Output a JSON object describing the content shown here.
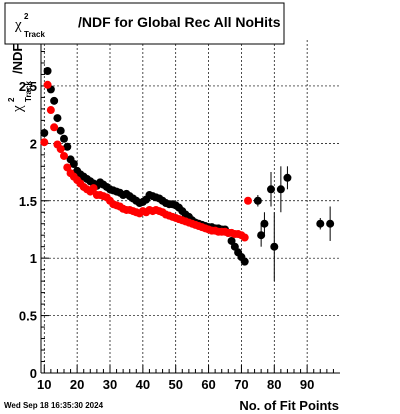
{
  "page": {
    "timestamp": "Wed Sep 18 16:35:30 2024"
  },
  "title": {
    "symbol": "χ",
    "superscript": "2",
    "subscript": "Track",
    "text": "/NDF for Global Rec All NoHits"
  },
  "chart_data": {
    "type": "scatter",
    "title": "χ²_Track/NDF for Global Rec All NoHits",
    "xlabel": "No. of Fit Points",
    "ylabel": {
      "symbol": "χ",
      "superscript": "2",
      "subscript": "Track",
      "text": "/NDF"
    },
    "xlim": [
      9,
      100
    ],
    "ylim": [
      0,
      2.9
    ],
    "x_ticks": [
      10,
      20,
      30,
      40,
      50,
      60,
      70,
      80,
      90
    ],
    "y_ticks": [
      0,
      0.5,
      1,
      1.5,
      2,
      2.5
    ],
    "x_tick_labels": [
      "10",
      "20",
      "30",
      "40",
      "50",
      "60",
      "70",
      "80",
      "90"
    ],
    "y_tick_labels": [
      "0",
      "0.5",
      "1",
      "1.5",
      "2",
      "2.5"
    ],
    "grid": true,
    "colors": {
      "black_series": "#000000",
      "red_series": "#ff0000"
    },
    "series": [
      {
        "color": "#000000",
        "points": [
          {
            "x": 10,
            "y": 2.09
          },
          {
            "x": 11,
            "y": 2.63
          },
          {
            "x": 12,
            "y": 2.47
          },
          {
            "x": 13,
            "y": 2.37
          },
          {
            "x": 14,
            "y": 2.22
          },
          {
            "x": 15,
            "y": 2.11
          },
          {
            "x": 16,
            "y": 2.04
          },
          {
            "x": 17,
            "y": 1.97
          },
          {
            "x": 18,
            "y": 1.86
          },
          {
            "x": 19,
            "y": 1.82
          },
          {
            "x": 20,
            "y": 1.76
          },
          {
            "x": 21,
            "y": 1.73
          },
          {
            "x": 22,
            "y": 1.71
          },
          {
            "x": 23,
            "y": 1.69
          },
          {
            "x": 24,
            "y": 1.67
          },
          {
            "x": 25,
            "y": 1.65
          },
          {
            "x": 26,
            "y": 1.63
          },
          {
            "x": 27,
            "y": 1.66
          },
          {
            "x": 28,
            "y": 1.64
          },
          {
            "x": 29,
            "y": 1.62
          },
          {
            "x": 30,
            "y": 1.6
          },
          {
            "x": 31,
            "y": 1.59
          },
          {
            "x": 32,
            "y": 1.58
          },
          {
            "x": 33,
            "y": 1.57
          },
          {
            "x": 34,
            "y": 1.55
          },
          {
            "x": 35,
            "y": 1.56
          },
          {
            "x": 36,
            "y": 1.54
          },
          {
            "x": 37,
            "y": 1.52
          },
          {
            "x": 38,
            "y": 1.5
          },
          {
            "x": 39,
            "y": 1.48
          },
          {
            "x": 40,
            "y": 1.49
          },
          {
            "x": 41,
            "y": 1.51
          },
          {
            "x": 42,
            "y": 1.55
          },
          {
            "x": 43,
            "y": 1.54
          },
          {
            "x": 44,
            "y": 1.53
          },
          {
            "x": 45,
            "y": 1.52
          },
          {
            "x": 46,
            "y": 1.5
          },
          {
            "x": 47,
            "y": 1.48
          },
          {
            "x": 48,
            "y": 1.47
          },
          {
            "x": 49,
            "y": 1.47
          },
          {
            "x": 50,
            "y": 1.46
          },
          {
            "x": 51,
            "y": 1.44
          },
          {
            "x": 52,
            "y": 1.41
          },
          {
            "x": 53,
            "y": 1.38
          },
          {
            "x": 54,
            "y": 1.36
          },
          {
            "x": 55,
            "y": 1.33
          },
          {
            "x": 56,
            "y": 1.31
          },
          {
            "x": 57,
            "y": 1.3
          },
          {
            "x": 58,
            "y": 1.29
          },
          {
            "x": 59,
            "y": 1.28
          },
          {
            "x": 60,
            "y": 1.27
          },
          {
            "x": 61,
            "y": 1.27
          },
          {
            "x": 62,
            "y": 1.26
          },
          {
            "x": 63,
            "y": 1.26
          },
          {
            "x": 64,
            "y": 1.25
          },
          {
            "x": 65,
            "y": 1.25
          },
          {
            "x": 66,
            "y": 1.22
          },
          {
            "x": 67,
            "y": 1.15
          },
          {
            "x": 68,
            "y": 1.1
          },
          {
            "x": 69,
            "y": 1.05
          },
          {
            "x": 70,
            "y": 1.01
          },
          {
            "x": 71,
            "y": 0.97
          },
          {
            "x": 75,
            "y": 1.5,
            "err": 0.05
          },
          {
            "x": 76,
            "y": 1.2,
            "err": 0.1
          },
          {
            "x": 77,
            "y": 1.3,
            "err": 0.1
          },
          {
            "x": 79,
            "y": 1.6,
            "err": 0.15
          },
          {
            "x": 80,
            "y": 1.1,
            "err": 0.3
          },
          {
            "x": 82,
            "y": 1.6,
            "err": 0.2
          },
          {
            "x": 84,
            "y": 1.7,
            "err": 0.1
          },
          {
            "x": 94,
            "y": 1.3,
            "err": 0.05
          },
          {
            "x": 97,
            "y": 1.3,
            "err": 0.15
          }
        ]
      },
      {
        "color": "#ff0000",
        "points": [
          {
            "x": 10,
            "y": 2.01
          },
          {
            "x": 11,
            "y": 2.51
          },
          {
            "x": 12,
            "y": 2.29
          },
          {
            "x": 13,
            "y": 2.14
          },
          {
            "x": 14,
            "y": 1.99
          },
          {
            "x": 15,
            "y": 1.95
          },
          {
            "x": 16,
            "y": 1.89
          },
          {
            "x": 17,
            "y": 1.79
          },
          {
            "x": 18,
            "y": 1.74
          },
          {
            "x": 19,
            "y": 1.71
          },
          {
            "x": 20,
            "y": 1.68
          },
          {
            "x": 21,
            "y": 1.65
          },
          {
            "x": 22,
            "y": 1.62
          },
          {
            "x": 23,
            "y": 1.6
          },
          {
            "x": 24,
            "y": 1.58
          },
          {
            "x": 25,
            "y": 1.61
          },
          {
            "x": 26,
            "y": 1.55
          },
          {
            "x": 27,
            "y": 1.55
          },
          {
            "x": 28,
            "y": 1.54
          },
          {
            "x": 29,
            "y": 1.53
          },
          {
            "x": 30,
            "y": 1.5
          },
          {
            "x": 31,
            "y": 1.47
          },
          {
            "x": 32,
            "y": 1.46
          },
          {
            "x": 33,
            "y": 1.45
          },
          {
            "x": 34,
            "y": 1.43
          },
          {
            "x": 35,
            "y": 1.42
          },
          {
            "x": 36,
            "y": 1.42
          },
          {
            "x": 37,
            "y": 1.41
          },
          {
            "x": 38,
            "y": 1.4
          },
          {
            "x": 39,
            "y": 1.39
          },
          {
            "x": 40,
            "y": 1.41
          },
          {
            "x": 41,
            "y": 1.4
          },
          {
            "x": 42,
            "y": 1.42
          },
          {
            "x": 43,
            "y": 1.41
          },
          {
            "x": 44,
            "y": 1.42
          },
          {
            "x": 45,
            "y": 1.41
          },
          {
            "x": 46,
            "y": 1.4
          },
          {
            "x": 47,
            "y": 1.38
          },
          {
            "x": 48,
            "y": 1.37
          },
          {
            "x": 49,
            "y": 1.36
          },
          {
            "x": 50,
            "y": 1.35
          },
          {
            "x": 51,
            "y": 1.34
          },
          {
            "x": 52,
            "y": 1.33
          },
          {
            "x": 53,
            "y": 1.32
          },
          {
            "x": 54,
            "y": 1.31
          },
          {
            "x": 55,
            "y": 1.3
          },
          {
            "x": 56,
            "y": 1.29
          },
          {
            "x": 57,
            "y": 1.28
          },
          {
            "x": 58,
            "y": 1.27
          },
          {
            "x": 59,
            "y": 1.26
          },
          {
            "x": 60,
            "y": 1.25
          },
          {
            "x": 61,
            "y": 1.24
          },
          {
            "x": 62,
            "y": 1.24
          },
          {
            "x": 63,
            "y": 1.23
          },
          {
            "x": 64,
            "y": 1.23
          },
          {
            "x": 65,
            "y": 1.23
          },
          {
            "x": 66,
            "y": 1.22
          },
          {
            "x": 67,
            "y": 1.22
          },
          {
            "x": 68,
            "y": 1.21
          },
          {
            "x": 69,
            "y": 1.21
          },
          {
            "x": 70,
            "y": 1.2
          },
          {
            "x": 71,
            "y": 1.18
          },
          {
            "x": 72,
            "y": 1.5
          }
        ]
      }
    ]
  }
}
